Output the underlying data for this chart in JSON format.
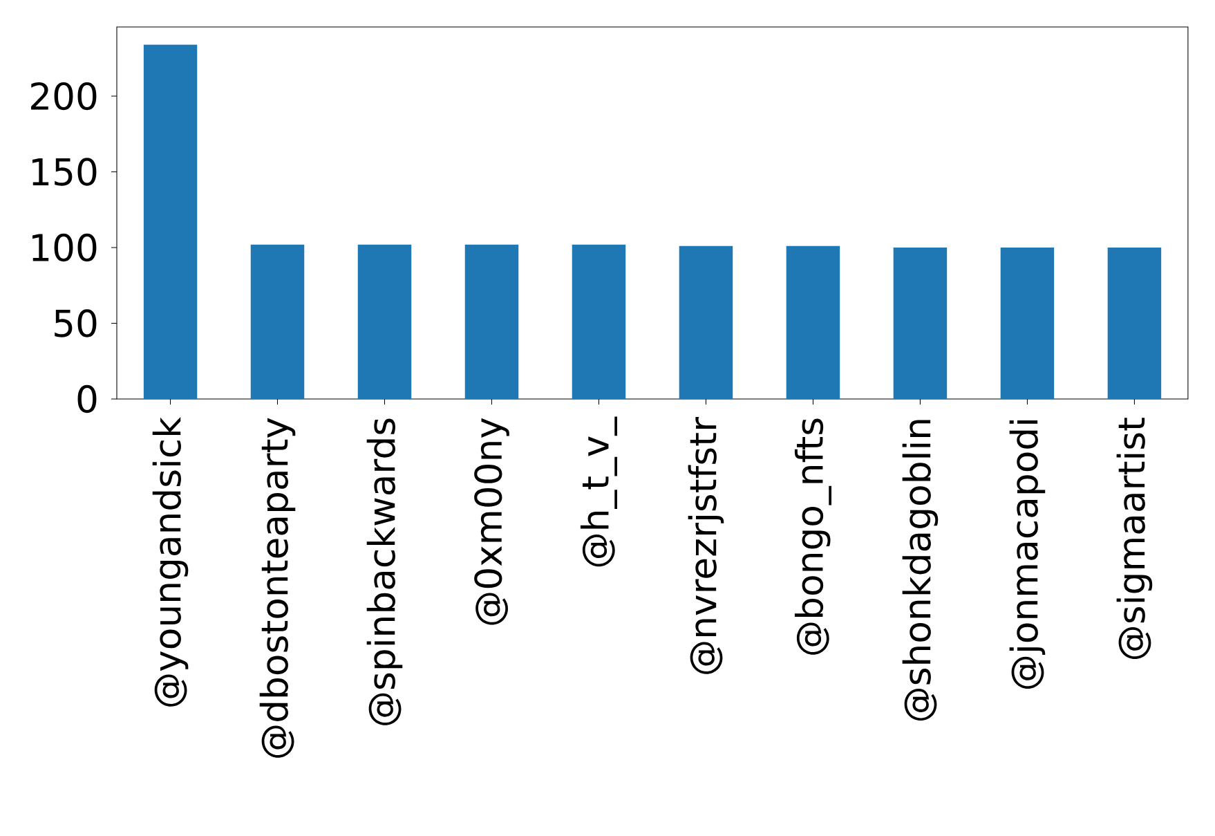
{
  "chart_data": {
    "type": "bar",
    "categories": [
      "@youngandsick",
      "@dbostonteaparty",
      "@spinbackwards",
      "@0xm00ny",
      "@h_t_v_",
      "@nvrezrjstfstr",
      "@bongo_nfts",
      "@shonkdagoblin",
      "@jonmacapodi",
      "@sigmaartist"
    ],
    "values": [
      234,
      102,
      102,
      102,
      102,
      101,
      101,
      100,
      100,
      100
    ],
    "color": "#1f77b4",
    "ylim": [
      0,
      245.7
    ],
    "yticks": [
      0,
      50,
      100,
      150,
      200
    ]
  }
}
